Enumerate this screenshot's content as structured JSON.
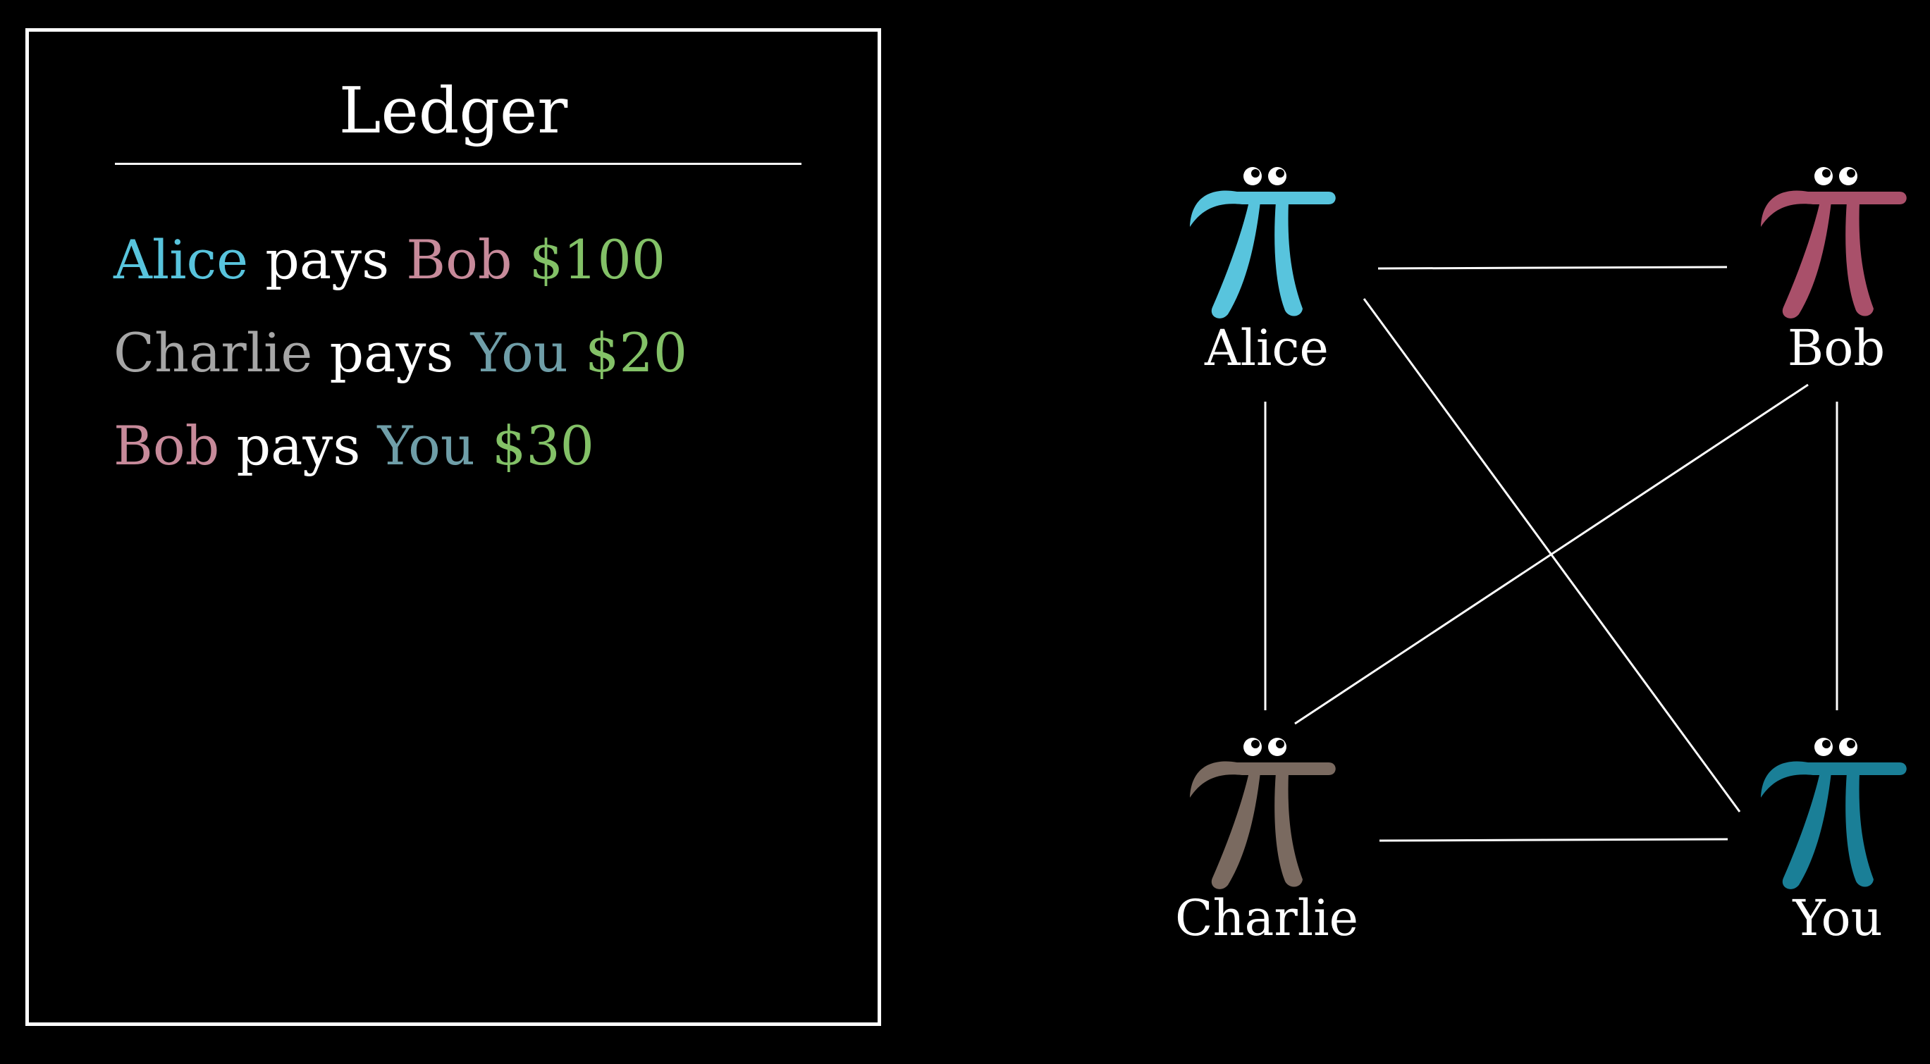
{
  "ledger": {
    "title": "Ledger",
    "entries": [
      {
        "payer": "Alice",
        "verb": "pays",
        "payee": "Bob",
        "amount": "$100"
      },
      {
        "payer": "Charlie",
        "verb": "pays",
        "payee": "You",
        "amount": "$20"
      },
      {
        "payer": "Bob",
        "verb": "pays",
        "payee": "You",
        "amount": "$30"
      }
    ]
  },
  "people": [
    {
      "id": "alice",
      "name": "Alice",
      "color": "#58c4dd",
      "icon": "pi-creature-icon"
    },
    {
      "id": "bob",
      "name": "Bob",
      "color": "#a9506a",
      "icon": "pi-creature-icon"
    },
    {
      "id": "charlie",
      "name": "Charlie",
      "color": "#7a6a60",
      "icon": "pi-creature-icon"
    },
    {
      "id": "you",
      "name": "You",
      "color": "#1a7f97",
      "icon": "pi-creature-icon"
    }
  ],
  "connections": [
    [
      "alice",
      "bob"
    ],
    [
      "alice",
      "charlie"
    ],
    [
      "alice",
      "you"
    ],
    [
      "bob",
      "charlie"
    ],
    [
      "bob",
      "you"
    ],
    [
      "charlie",
      "you"
    ]
  ],
  "colors": {
    "background": "#000000",
    "text": "#ffffff",
    "amount": "#83c167",
    "ledger_names": {
      "Alice": "#58c4dd",
      "Bob": "#c78a9a",
      "Charlie": "#a6a6a6",
      "You": "#6f9ea8"
    }
  }
}
